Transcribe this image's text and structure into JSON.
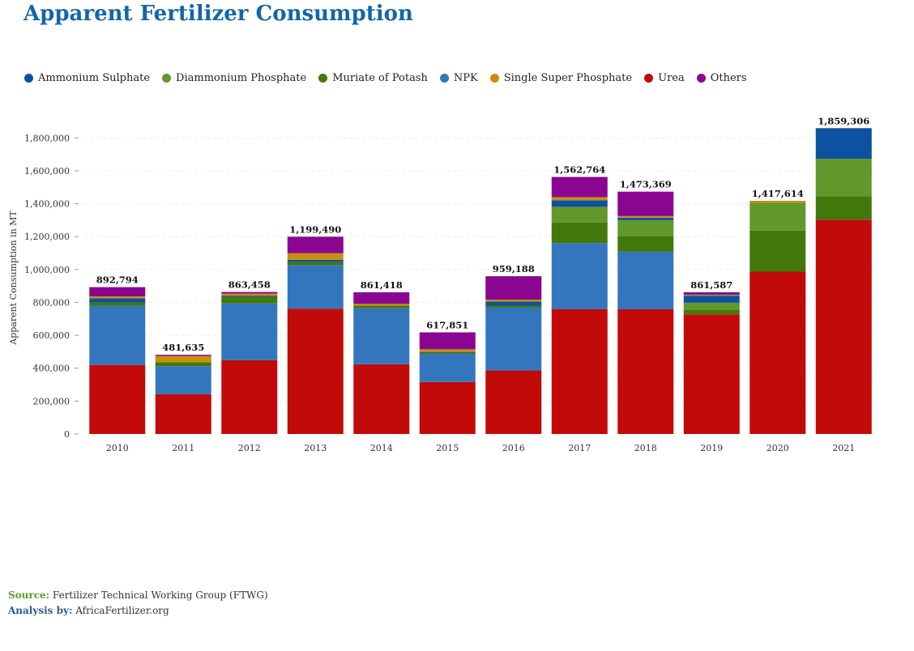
{
  "colors": {
    "title": "#1466a8",
    "source_label": "#5b9a2a",
    "analysis_label": "#2d5c8a"
  },
  "chart_data": {
    "type": "bar",
    "stacked": true,
    "title": "Apparent Fertilizer Consumption",
    "xlabel": "",
    "ylabel": "Apparent Consumption in MT",
    "ylim": [
      0,
      1900000
    ],
    "yticks": [
      0,
      200000,
      400000,
      600000,
      800000,
      1000000,
      1200000,
      1400000,
      1600000,
      1800000
    ],
    "ytick_labels": [
      "0",
      "200,000",
      "400,000",
      "600,000",
      "800,000",
      "1,000,000",
      "1,200,000",
      "1,400,000",
      "1,600,000",
      "1,800,000"
    ],
    "grid": true,
    "legend_position": "top-left",
    "categories": [
      "2010",
      "2011",
      "2012",
      "2013",
      "2014",
      "2015",
      "2016",
      "2017",
      "2018",
      "2019",
      "2020",
      "2021"
    ],
    "totals": [
      892794,
      481635,
      863458,
      1199490,
      861418,
      617851,
      959188,
      1562764,
      1473369,
      861587,
      1417614,
      1859306
    ],
    "total_labels": [
      "892,794",
      "481,635",
      "863,458",
      "1,199,490",
      "861,418",
      "617,851",
      "959,188",
      "1,562,764",
      "1,473,369",
      "861,587",
      "1,417,614",
      "1,859,306"
    ],
    "series": [
      {
        "name": "Urea",
        "color": "#c20a0a",
        "values": [
          420000,
          242000,
          449000,
          762000,
          424000,
          316000,
          386000,
          758000,
          758000,
          727000,
          987000,
          1303000
        ]
      },
      {
        "name": "NPK",
        "color": "#3476be",
        "values": [
          360000,
          171000,
          345000,
          265000,
          340000,
          171000,
          382000,
          402000,
          350000,
          0,
          0,
          0
        ]
      },
      {
        "name": "Muriate of Potash",
        "color": "#43780c",
        "values": [
          20000,
          23000,
          40000,
          18000,
          17000,
          8000,
          12000,
          125000,
          95000,
          30000,
          250000,
          143000
        ]
      },
      {
        "name": "Diammonium Phosphate",
        "color": "#62982c",
        "values": [
          0,
          0,
          0,
          0,
          0,
          0,
          0,
          96000,
          97000,
          41000,
          168000,
          227000
        ]
      },
      {
        "name": "Ammonium Sulphate",
        "color": "#0d52a0",
        "values": [
          25000,
          0,
          7000,
          14000,
          0,
          4000,
          25000,
          40000,
          15000,
          43000,
          0,
          186306
        ]
      },
      {
        "name": "Single Super Phosphate",
        "color": "#c8900a",
        "values": [
          12000,
          38000,
          13000,
          40000,
          10000,
          16000,
          12000,
          19000,
          10000,
          6000,
          12614,
          0
        ]
      },
      {
        "name": "Others",
        "color": "#8a0590",
        "values": [
          55794,
          7635,
          9458,
          100490,
          70418,
          102851,
          142188,
          122764,
          148369,
          14587,
          0,
          0
        ]
      }
    ],
    "legend_order": [
      "Ammonium Sulphate",
      "Diammonium Phosphate",
      "Muriate of Potash",
      "NPK",
      "Single Super Phosphate",
      "Urea",
      "Others"
    ]
  },
  "footer": {
    "source_label": "Source:",
    "source_text": "Fertilizer Technical Working Group (FTWG)",
    "analysis_label": "Analysis by:",
    "analysis_text": "AfricaFertilizer.org"
  }
}
